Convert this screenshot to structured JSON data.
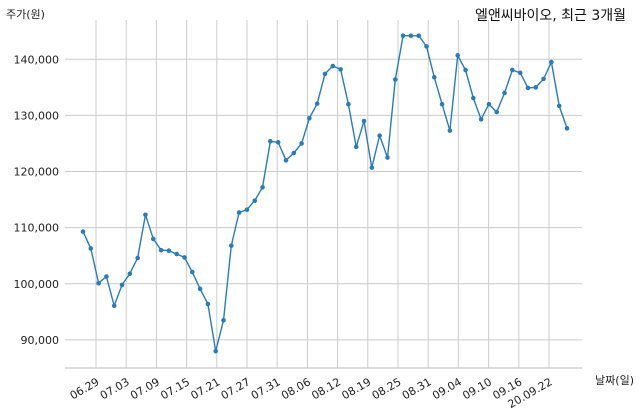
{
  "chart_data": {
    "type": "line",
    "title": "엘앤씨바이오, 최근 3개월",
    "ylabel": "주가(원)",
    "xlabel": "날짜(일)",
    "ylim": [
      85000,
      147000
    ],
    "grid": true,
    "y_ticks": [
      90000,
      100000,
      110000,
      120000,
      130000,
      140000
    ],
    "y_tick_labels": [
      "90,000",
      "100,000",
      "110,000",
      "120,000",
      "130,000",
      "140,000"
    ],
    "x_tick_labels": [
      "06.29",
      "07.03",
      "07.09",
      "07.15",
      "07.21",
      "07.27",
      "07.31",
      "08.06",
      "08.12",
      "08.19",
      "08.25",
      "08.31",
      "09.04",
      "09.10",
      "09.16",
      "20.09.22"
    ],
    "series_color": "#2b7bb9",
    "series": [
      {
        "values": [
          109300,
          106300,
          100100,
          101300,
          96100,
          99800,
          101800,
          104600,
          112300,
          108000,
          106000,
          105900,
          105300,
          104700,
          102100,
          99100,
          96400,
          88000,
          93500,
          106800,
          112700,
          113200,
          114800,
          117200,
          125400,
          125200,
          122000,
          123300,
          125000,
          129500,
          132100,
          137400,
          138800,
          138200,
          132000,
          124400,
          129000,
          120700,
          126400,
          122500,
          136400,
          144200,
          144200,
          144200,
          142300,
          136800,
          132000,
          127300,
          140700,
          138100,
          133100,
          129300,
          132000,
          130600,
          134000,
          138100,
          137600,
          134900,
          135000,
          136500,
          139500,
          131700,
          127700
        ]
      }
    ]
  }
}
